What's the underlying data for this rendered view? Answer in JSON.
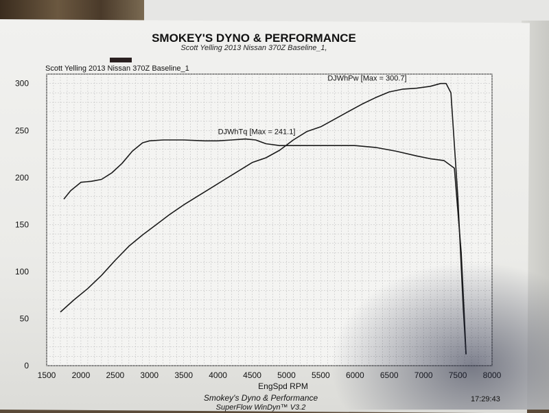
{
  "header": {
    "title": "SMOKEY'S DYNO & PERFORMANCE",
    "subtitle": "Scott Yelling 2013 Nissan 370Z Baseline_1,",
    "run_label": "Scott Yelling 2013 Nissan 370Z Baseline_1"
  },
  "footer": {
    "company": "Smokey's Dyno & Performance",
    "software": "SuperFlow WinDyn™ V3.2",
    "time": "17:29:43"
  },
  "chart_data": {
    "type": "line",
    "xlabel": "EngSpd RPM",
    "ylabel": "",
    "xlim": [
      1500,
      8000
    ],
    "ylim": [
      0,
      310
    ],
    "x_ticks": [
      1500,
      2000,
      2500,
      3000,
      3500,
      4000,
      4500,
      5000,
      5500,
      6000,
      6500,
      7000,
      7500,
      8000
    ],
    "y_ticks": [
      0,
      50,
      100,
      150,
      200,
      250,
      300
    ],
    "grid": true,
    "series": [
      {
        "name": "DJWhTq",
        "annotation": "DJWhTq [Max = 241.1]",
        "color": "#1a1a1a",
        "x": [
          1750,
          1850,
          2000,
          2150,
          2300,
          2450,
          2600,
          2750,
          2900,
          3000,
          3200,
          3500,
          3800,
          4000,
          4200,
          4400,
          4550,
          4700,
          4900,
          5100,
          5400,
          5700,
          6000,
          6300,
          6600,
          6900,
          7100,
          7300,
          7450,
          7550,
          7600,
          7620
        ],
        "y": [
          177,
          186,
          195,
          196,
          198,
          205,
          215,
          228,
          237,
          239,
          240,
          240,
          239,
          239,
          240,
          241,
          240,
          236,
          234,
          234,
          234,
          234,
          234,
          232,
          228,
          223,
          220,
          218,
          210,
          120,
          45,
          12
        ]
      },
      {
        "name": "DJWhPw",
        "annotation": "DJWhPw [Max = 300.7]",
        "color": "#1a1a1a",
        "x": [
          1700,
          1900,
          2100,
          2300,
          2500,
          2700,
          2900,
          3100,
          3300,
          3500,
          3700,
          3900,
          4100,
          4300,
          4500,
          4700,
          4900,
          5100,
          5300,
          5500,
          5700,
          5900,
          6100,
          6300,
          6500,
          6700,
          6900,
          7100,
          7250,
          7330,
          7400,
          7500,
          7580,
          7620
        ],
        "y": [
          57,
          70,
          82,
          96,
          112,
          127,
          139,
          150,
          161,
          171,
          180,
          189,
          198,
          207,
          216,
          221,
          229,
          240,
          249,
          254,
          262,
          270,
          278,
          285,
          291,
          294,
          295,
          297,
          300,
          300,
          290,
          180,
          60,
          12
        ]
      }
    ]
  }
}
